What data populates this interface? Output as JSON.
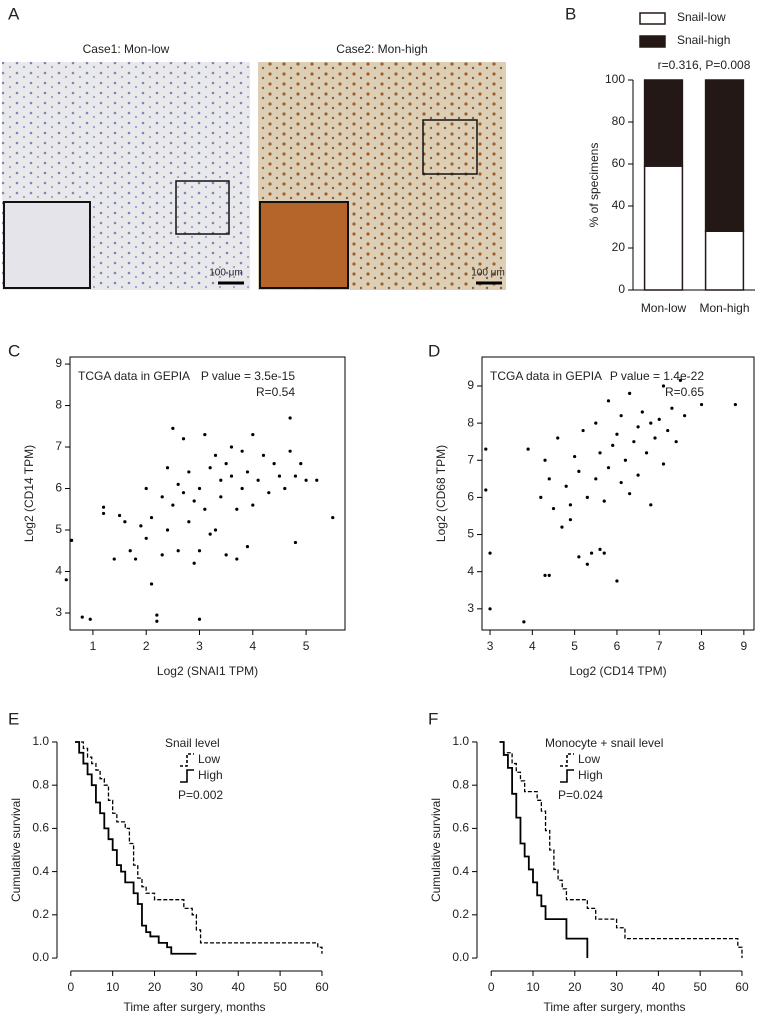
{
  "figure_a": {
    "panel": "A",
    "images": [
      {
        "caption": "Case1: Mon-low",
        "scale_bar": "100 μm"
      },
      {
        "caption": "Case2: Mon-high",
        "scale_bar": "100 μm"
      }
    ]
  },
  "chart_data": [
    {
      "type": "bar",
      "panel": "B",
      "stacked": true,
      "subtitle": "r=0.316, P=0.008",
      "ylabel": "% of specimens",
      "categories": [
        "Mon-low",
        "Mon-high"
      ],
      "series": [
        {
          "name": "Snail-low",
          "color": "#ffffff",
          "values": [
            59,
            28
          ]
        },
        {
          "name": "Snail-high",
          "color": "#231815",
          "values": [
            41,
            72
          ]
        }
      ],
      "ylim": [
        0,
        100
      ],
      "yticks": [
        0,
        20,
        40,
        60,
        80,
        100
      ]
    },
    {
      "type": "scatter",
      "panel": "C",
      "xlabel": "Log2 (SNAI1 TPM)",
      "ylabel": "Log2 (CD14 TPM)",
      "annotations": [
        "TCGA data in GEPIA",
        "P value = 3.5e-15",
        "R=0.54"
      ],
      "color": "#000000",
      "x": [
        0.5,
        0.6,
        0.8,
        0.95,
        1.2,
        1.2,
        1.4,
        1.5,
        1.6,
        1.7,
        1.8,
        1.9,
        2.0,
        2.0,
        2.1,
        2.1,
        2.2,
        2.2,
        2.3,
        2.3,
        2.4,
        2.4,
        2.5,
        2.5,
        2.6,
        2.6,
        2.7,
        2.7,
        2.8,
        2.8,
        2.9,
        2.9,
        3.0,
        3.0,
        3.0,
        3.1,
        3.1,
        3.2,
        3.2,
        3.3,
        3.3,
        3.4,
        3.4,
        3.5,
        3.5,
        3.6,
        3.6,
        3.7,
        3.7,
        3.8,
        3.8,
        3.9,
        3.9,
        4.0,
        4.0,
        4.1,
        4.2,
        4.3,
        4.4,
        4.5,
        4.6,
        4.7,
        4.7,
        4.8,
        4.8,
        4.9,
        5.0,
        5.2,
        5.5
      ],
      "values": [
        3.8,
        4.75,
        2.9,
        2.85,
        5.4,
        5.55,
        4.3,
        5.35,
        5.2,
        4.5,
        4.3,
        5.1,
        6.0,
        4.8,
        3.7,
        5.3,
        2.8,
        2.95,
        4.4,
        5.8,
        6.5,
        5.0,
        7.45,
        5.6,
        4.5,
        6.1,
        5.9,
        7.2,
        5.2,
        6.4,
        4.2,
        5.7,
        6.0,
        2.85,
        4.5,
        7.3,
        5.5,
        6.5,
        4.9,
        5.0,
        6.8,
        6.2,
        5.8,
        6.6,
        4.4,
        7.0,
        6.3,
        5.5,
        4.3,
        6.9,
        6.0,
        4.6,
        6.4,
        5.6,
        7.3,
        6.2,
        6.8,
        5.9,
        6.6,
        6.3,
        6.0,
        7.7,
        6.9,
        4.7,
        6.3,
        6.6,
        6.2,
        6.2,
        5.3
      ],
      "xlim": [
        0.57,
        5.73
      ],
      "ylim": [
        2.59,
        9.17
      ],
      "xticks": [
        1,
        2,
        3,
        4,
        5
      ],
      "yticks": [
        3,
        4,
        5,
        6,
        7,
        8,
        9
      ]
    },
    {
      "type": "scatter",
      "panel": "D",
      "xlabel": "Log2 (CD14 TPM)",
      "ylabel": "Log2 (CD68 TPM)",
      "annotations": [
        "TCGA data in GEPIA",
        "P value = 1.4e-22",
        "R=0.65"
      ],
      "color": "#000000",
      "x": [
        2.9,
        2.9,
        3.0,
        3.0,
        3.8,
        3.9,
        4.2,
        4.3,
        4.3,
        4.4,
        4.5,
        4.6,
        4.7,
        4.8,
        4.9,
        5.0,
        5.1,
        5.1,
        5.2,
        5.3,
        5.4,
        5.5,
        5.5,
        5.6,
        5.7,
        5.8,
        5.8,
        5.9,
        6.0,
        6.0,
        6.1,
        6.1,
        6.2,
        6.3,
        6.3,
        6.4,
        6.5,
        6.5,
        6.6,
        6.7,
        6.8,
        6.8,
        6.9,
        7.0,
        7.1,
        7.1,
        7.2,
        7.3,
        7.4,
        7.5,
        7.6,
        8.0,
        8.8,
        4.4,
        5.3,
        4.9,
        5.6,
        5.7
      ],
      "values": [
        7.3,
        6.2,
        4.5,
        3.0,
        2.65,
        7.3,
        6.0,
        3.9,
        7.0,
        6.5,
        5.7,
        7.6,
        5.2,
        6.3,
        5.8,
        7.1,
        4.4,
        6.7,
        7.8,
        6.0,
        4.5,
        8.0,
        6.5,
        7.2,
        5.9,
        8.6,
        6.8,
        7.4,
        3.75,
        7.7,
        6.4,
        8.2,
        7.0,
        8.8,
        6.1,
        7.5,
        7.9,
        6.6,
        8.3,
        7.2,
        8.0,
        5.8,
        7.6,
        8.1,
        9.0,
        6.9,
        7.8,
        8.4,
        7.5,
        9.15,
        8.2,
        8.5,
        8.5,
        3.9,
        4.2,
        5.4,
        4.6,
        4.5
      ],
      "xlim": [
        2.81,
        9.24
      ],
      "ylim": [
        2.43,
        9.78
      ],
      "xticks": [
        3,
        4,
        5,
        6,
        7,
        8,
        9
      ],
      "yticks": [
        3,
        4,
        5,
        6,
        7,
        8,
        9
      ]
    },
    {
      "type": "line",
      "panel": "E",
      "step": true,
      "legend_title": "Snail level",
      "p_value": "P=0.002",
      "xlabel": "Time after surgery, months",
      "ylabel": "Cumulative survival",
      "series": [
        {
          "name": "Low",
          "color": "#000000",
          "dash": "dashed",
          "x": [
            1,
            3,
            4,
            5,
            6,
            7,
            8,
            9,
            10,
            11,
            13,
            14,
            15,
            16,
            17,
            18,
            20,
            27,
            29,
            30,
            31,
            59,
            60
          ],
          "values": [
            1.0,
            0.97,
            0.93,
            0.9,
            0.87,
            0.83,
            0.8,
            0.73,
            0.67,
            0.63,
            0.6,
            0.53,
            0.43,
            0.37,
            0.33,
            0.3,
            0.27,
            0.23,
            0.2,
            0.13,
            0.07,
            0.05,
            0.02
          ]
        },
        {
          "name": "High",
          "color": "#000000",
          "dash": "solid",
          "x": [
            1,
            2,
            3,
            4,
            5,
            6,
            7,
            8,
            9,
            10,
            11,
            12,
            13,
            15,
            16,
            17,
            18,
            19,
            21,
            23,
            24,
            30
          ],
          "values": [
            1.0,
            0.95,
            0.9,
            0.85,
            0.8,
            0.72,
            0.67,
            0.6,
            0.55,
            0.5,
            0.43,
            0.4,
            0.35,
            0.3,
            0.25,
            0.15,
            0.12,
            0.1,
            0.07,
            0.05,
            0.02,
            0.02
          ]
        }
      ],
      "xlim": [
        -3.3,
        62.4
      ],
      "ylim": [
        -0.06,
        1.06
      ],
      "xticks": [
        0,
        10,
        20,
        30,
        40,
        50,
        60
      ],
      "yticks": [
        {
          "value": 0,
          "label": "0.0"
        },
        0.2,
        0.4,
        0.6,
        0.8,
        {
          "value": 1,
          "label": "1.0"
        }
      ]
    },
    {
      "type": "line",
      "panel": "F",
      "step": true,
      "legend_title": "Monocyte + snail level",
      "p_value": "P=0.024",
      "xlabel": "Time after surgery, months",
      "ylabel": "Cumulative survival",
      "series": [
        {
          "name": "Low",
          "color": "#000000",
          "dash": "dashed",
          "x": [
            2,
            3,
            5,
            6,
            7,
            8,
            11,
            12,
            13,
            14,
            15,
            16,
            17,
            18,
            23,
            25,
            30,
            32,
            59,
            60
          ],
          "values": [
            1.0,
            0.95,
            0.9,
            0.86,
            0.82,
            0.77,
            0.73,
            0.68,
            0.59,
            0.5,
            0.41,
            0.36,
            0.32,
            0.27,
            0.23,
            0.18,
            0.14,
            0.09,
            0.05,
            0.0
          ]
        },
        {
          "name": "High",
          "color": "#000000",
          "dash": "solid",
          "x": [
            2,
            3,
            4,
            5,
            6,
            7,
            8,
            9,
            10,
            11,
            12,
            13,
            18,
            23
          ],
          "values": [
            1.0,
            0.94,
            0.88,
            0.76,
            0.65,
            0.53,
            0.47,
            0.41,
            0.35,
            0.29,
            0.24,
            0.18,
            0.09,
            0.0
          ]
        }
      ],
      "xlim": [
        -3.4,
        62.4
      ],
      "ylim": [
        -0.06,
        1.06
      ],
      "xticks": [
        0,
        10,
        20,
        30,
        40,
        50,
        60
      ],
      "yticks": [
        {
          "value": 0,
          "label": "0.0"
        },
        0.2,
        0.4,
        0.6,
        0.8,
        {
          "value": 1,
          "label": "1.0"
        }
      ]
    }
  ]
}
